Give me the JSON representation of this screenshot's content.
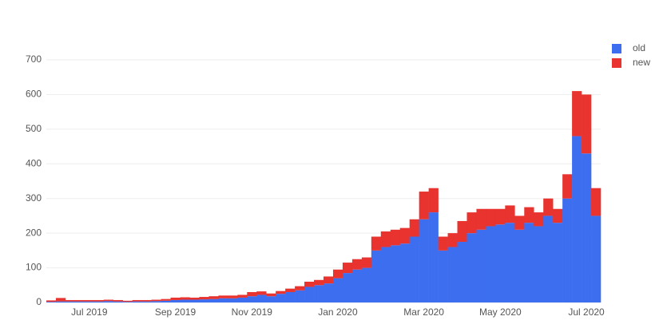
{
  "chart_data": {
    "type": "stacked-bar",
    "categories": [
      null,
      null,
      null,
      null,
      "Jul 2019",
      null,
      null,
      null,
      null,
      null,
      null,
      null,
      null,
      "Sep 2019",
      null,
      null,
      null,
      null,
      null,
      null,
      null,
      "Nov 2019",
      null,
      null,
      null,
      null,
      null,
      null,
      null,
      null,
      "Jan 2020",
      null,
      null,
      null,
      null,
      null,
      null,
      null,
      null,
      "Mar 2020",
      null,
      null,
      null,
      null,
      null,
      null,
      null,
      "May 2020",
      null,
      null,
      null,
      null,
      null,
      null,
      null,
      null,
      "Jul 2020",
      null
    ],
    "series": [
      {
        "name": "old",
        "color": "#3d6ef0",
        "values": [
          2,
          3,
          3,
          3,
          3,
          3,
          4,
          3,
          2,
          3,
          3,
          4,
          5,
          7,
          8,
          8,
          9,
          10,
          12,
          12,
          14,
          18,
          22,
          18,
          25,
          30,
          35,
          45,
          50,
          55,
          70,
          85,
          95,
          100,
          150,
          160,
          165,
          170,
          190,
          240,
          260,
          150,
          160,
          175,
          200,
          210,
          220,
          225,
          230,
          210,
          230,
          220,
          250,
          230,
          300,
          480,
          430,
          250
        ]
      },
      {
        "name": "new",
        "color": "#e8332f",
        "values": [
          4,
          10,
          4,
          4,
          4,
          4,
          4,
          4,
          3,
          4,
          4,
          4,
          5,
          7,
          7,
          6,
          7,
          8,
          8,
          8,
          8,
          12,
          10,
          8,
          8,
          10,
          12,
          15,
          15,
          20,
          25,
          30,
          30,
          30,
          40,
          45,
          45,
          45,
          50,
          80,
          70,
          40,
          40,
          60,
          60,
          60,
          50,
          45,
          50,
          40,
          45,
          40,
          50,
          40,
          70,
          130,
          170,
          80
        ]
      }
    ],
    "ylim": [
      0,
      730
    ],
    "yticks": [
      0,
      100,
      200,
      300,
      400,
      500,
      600,
      700
    ],
    "grid": true,
    "legend": "top-right"
  }
}
